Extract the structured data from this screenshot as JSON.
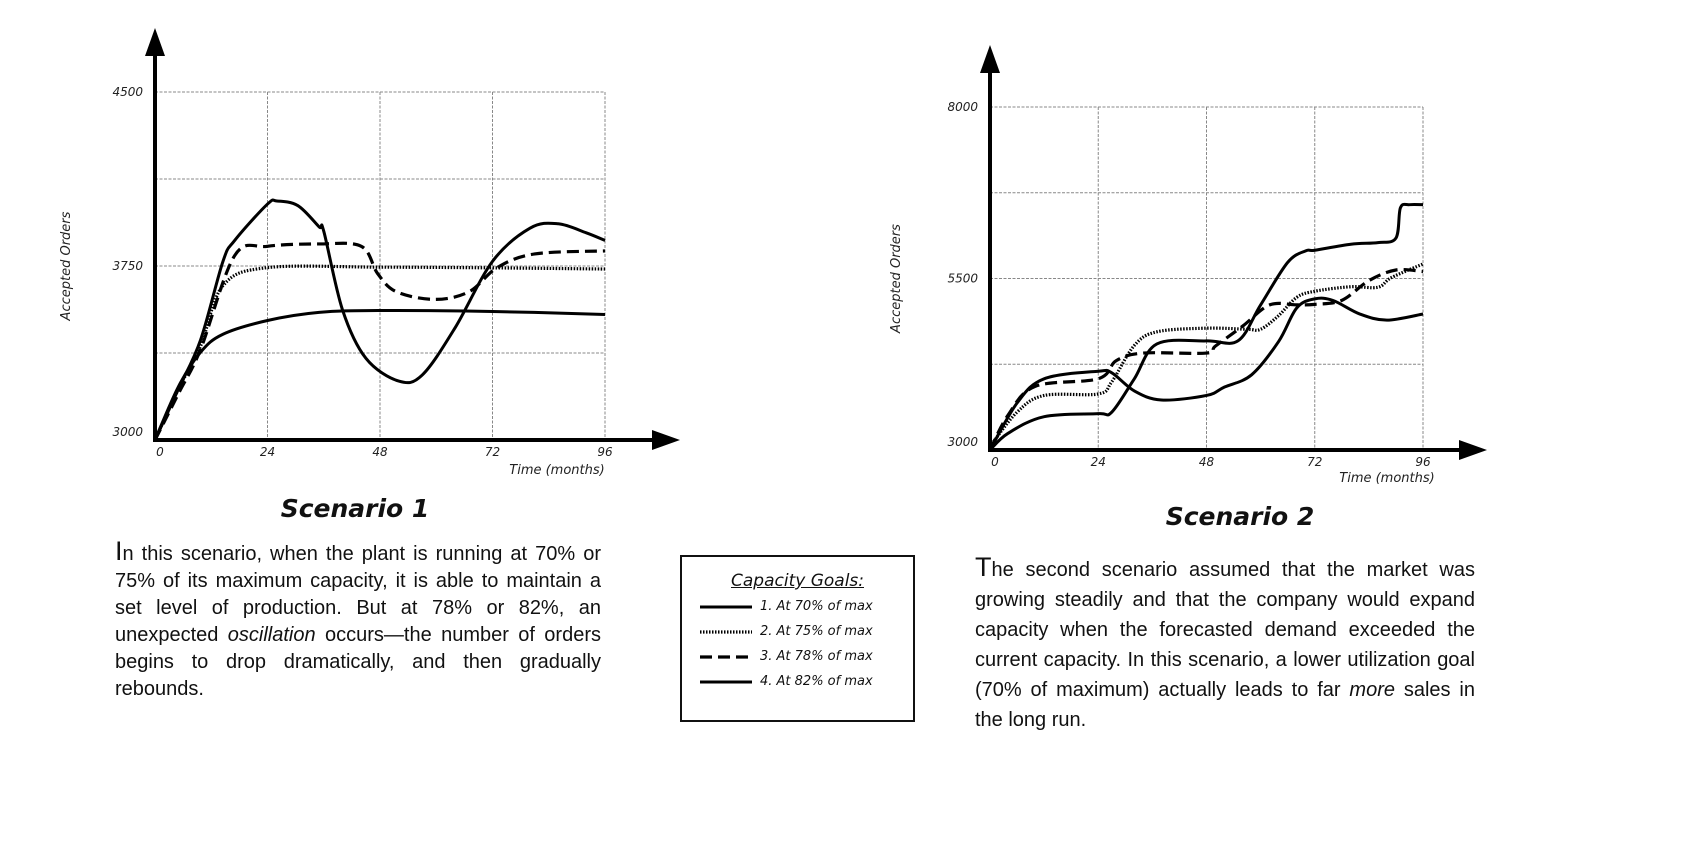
{
  "chart_data": [
    {
      "type": "line",
      "title": "Scenario 1",
      "xlabel": "Time (months)",
      "ylabel": "Accepted Orders",
      "xlim": [
        0,
        96
      ],
      "ylim": [
        3000,
        4500
      ],
      "xticks": [
        0,
        24,
        48,
        72,
        96
      ],
      "yticks": [
        3000,
        3750,
        4500
      ],
      "y_grid": [
        3375,
        3750,
        4125,
        4500
      ],
      "grid": true,
      "series": [
        {
          "name": "1. At 70% of max",
          "style": "solid",
          "x": [
            0,
            5,
            9.7,
            14.5,
            24,
            35,
            48,
            72,
            96
          ],
          "y": [
            3000,
            3230,
            3378,
            3456,
            3515,
            3550,
            3558,
            3554,
            3541
          ]
        },
        {
          "name": "2. At 75% of max",
          "style": "dotted",
          "x": [
            0,
            5,
            9.7,
            14.5,
            24,
            48,
            72,
            96
          ],
          "y": [
            3000,
            3220,
            3404,
            3665,
            3743,
            3745,
            3742,
            3737
          ]
        },
        {
          "name": "3. At 78% of max",
          "style": "dashed",
          "x": [
            0,
            5,
            9.7,
            17,
            24,
            35,
            44,
            47.5,
            51.5,
            59.6,
            67,
            73,
            81,
            96
          ],
          "y": [
            3000,
            3200,
            3390,
            3795,
            3835,
            3845,
            3835,
            3717,
            3639,
            3606,
            3639,
            3743,
            3802,
            3815
          ]
        },
        {
          "name": "4. At 82% of max",
          "style": "solid",
          "x": [
            0,
            5,
            9.7,
            14.5,
            17,
            24,
            26,
            30.5,
            35,
            36,
            40,
            45,
            52,
            57,
            64,
            72,
            80,
            86,
            92,
            96
          ],
          "y": [
            3000,
            3220,
            3430,
            3770,
            3860,
            4017,
            4030,
            4010,
            3919,
            3900,
            3561,
            3352,
            3254,
            3280,
            3483,
            3770,
            3913,
            3932,
            3893,
            3860
          ]
        }
      ]
    },
    {
      "type": "line",
      "title": "Scenario 2",
      "xlabel": "Time (months)",
      "ylabel": "Accepted Orders",
      "xlim": [
        0,
        96
      ],
      "ylim": [
        3000,
        8000
      ],
      "xticks": [
        0,
        24,
        48,
        72,
        96
      ],
      "yticks": [
        3000,
        5500,
        8000
      ],
      "y_grid": [
        4250,
        5500,
        6750,
        8000
      ],
      "grid": true,
      "series": [
        {
          "name": "1. At 70% of max",
          "style": "solid",
          "x": [
            0,
            4,
            12,
            24,
            27,
            32,
            37,
            48,
            55,
            60,
            66,
            70,
            72,
            80,
            86,
            90,
            91,
            93,
            96
          ],
          "y": [
            3000,
            3243,
            3486,
            3530,
            3552,
            4038,
            4546,
            4590,
            4592,
            5115,
            5735,
            5903,
            5912,
            6000,
            6023,
            6089,
            6532,
            6576,
            6576
          ]
        },
        {
          "name": "2. At 75% of max",
          "style": "dotted",
          "x": [
            0,
            6,
            12,
            24,
            27,
            32,
            37,
            48,
            57,
            60,
            64,
            68,
            72,
            80,
            86,
            89,
            96
          ],
          "y": [
            3050,
            3552,
            3795,
            3817,
            3994,
            4524,
            4723,
            4776,
            4760,
            4760,
            4960,
            5225,
            5314,
            5380,
            5372,
            5513,
            5712
          ]
        },
        {
          "name": "3. At 78% of max",
          "style": "dashed",
          "x": [
            0,
            4,
            10,
            24,
            28,
            34,
            48,
            50,
            56,
            62,
            68,
            72,
            78,
            84,
            90,
            96
          ],
          "y": [
            3000,
            3508,
            3928,
            4038,
            4303,
            4413,
            4413,
            4516,
            4805,
            5115,
            5115,
            5123,
            5181,
            5469,
            5624,
            5602
          ]
        },
        {
          "name": "4. At 82% of max",
          "style": "solid",
          "x": [
            0,
            6,
            12,
            24,
            27,
            32,
            38,
            48,
            52,
            58,
            64,
            68,
            72,
            76,
            82,
            88,
            96
          ],
          "y": [
            3000,
            3685,
            4038,
            4148,
            4126,
            3861,
            3729,
            3795,
            3918,
            4096,
            4583,
            5070,
            5203,
            5181,
            4982,
            4893,
            4982
          ]
        }
      ]
    }
  ],
  "scenario1": {
    "title": "Scenario 1",
    "text_cap": "I",
    "text_before": "n this scenario, when the plant is running at 70% or 75% of its maximum capacity, it is able to maintain a set level of production.  But at 78% or 82%, an unexpected ",
    "text_italic": "oscillation",
    "text_after": " occurs—the number of orders begins to drop dramatically, and then gradually rebounds."
  },
  "scenario2": {
    "title": "Scenario 2",
    "text_cap": "T",
    "text_before": "he second scenario assumed that the market was growing steadily and that the company would expand capacity when the forecasted demand exceeded the current capacity.  In this scenario, a lower utilization goal (70% of maximum) actually leads to far ",
    "text_italic": "more",
    "text_after": " sales in the long run."
  },
  "legend": {
    "title": "Capacity Goals:",
    "items": [
      {
        "label": "1. At 70% of max",
        "style": "solid"
      },
      {
        "label": "2. At 75% of max",
        "style": "dotted"
      },
      {
        "label": "3. At 78% of max",
        "style": "dashed"
      },
      {
        "label": "4. At 82% of max",
        "style": "solid"
      }
    ]
  }
}
